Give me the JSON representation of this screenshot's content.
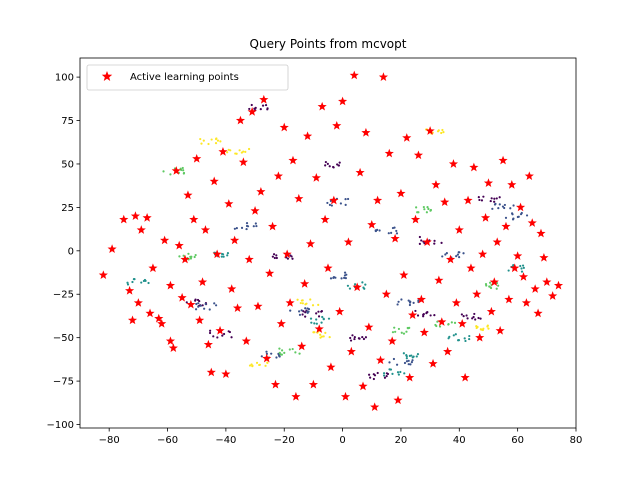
{
  "chart_data": {
    "type": "scatter",
    "title": "Query Points from mcvopt",
    "xlabel": "",
    "ylabel": "",
    "xlim": [
      -90,
      80
    ],
    "ylim": [
      -102,
      111
    ],
    "xticks": [
      -80,
      -60,
      -40,
      -20,
      0,
      20,
      40,
      60,
      80
    ],
    "yticks": [
      -100,
      -75,
      -50,
      -25,
      0,
      25,
      50,
      75,
      100
    ],
    "xtick_labels": [
      "−80",
      "−60",
      "−40",
      "−20",
      "0",
      "20",
      "40",
      "60",
      "80"
    ],
    "ytick_labels": [
      "−100",
      "−75",
      "−50",
      "−25",
      "0",
      "25",
      "50",
      "75",
      "100"
    ],
    "grid": false,
    "legend": {
      "position": "top-left",
      "entries": [
        "Active learning points"
      ]
    },
    "colors": {
      "query": "#ff0000",
      "class_palette": [
        "#440154",
        "#3b528b",
        "#21918c",
        "#5ec962",
        "#fde725"
      ]
    },
    "background_marker": "small dots colored by class (viridis)",
    "series": [
      {
        "name": "Active learning points",
        "marker": "star",
        "color": "#ff0000",
        "points": [
          [
            -82,
            -14
          ],
          [
            -79,
            1
          ],
          [
            -75,
            18
          ],
          [
            -73,
            -23
          ],
          [
            -72,
            -40
          ],
          [
            -71,
            20
          ],
          [
            -70,
            -30
          ],
          [
            -69,
            12
          ],
          [
            -67,
            19
          ],
          [
            -66,
            -36
          ],
          [
            -65,
            -10
          ],
          [
            -63,
            -39
          ],
          [
            -62,
            -42
          ],
          [
            -61,
            6
          ],
          [
            -59,
            -52
          ],
          [
            -59,
            -20
          ],
          [
            -58,
            -56
          ],
          [
            -57,
            46
          ],
          [
            -56,
            3
          ],
          [
            -55,
            -27
          ],
          [
            -54,
            -5
          ],
          [
            -53,
            32
          ],
          [
            -52,
            -31
          ],
          [
            -51,
            18
          ],
          [
            -50,
            53
          ],
          [
            -49,
            -40
          ],
          [
            -48,
            -18
          ],
          [
            -47,
            12
          ],
          [
            -46,
            -54
          ],
          [
            -45,
            -70
          ],
          [
            -44,
            40
          ],
          [
            -43,
            -2
          ],
          [
            -42,
            -46
          ],
          [
            -41,
            57
          ],
          [
            -40,
            -71
          ],
          [
            -39,
            27
          ],
          [
            -38,
            -22
          ],
          [
            -37,
            6
          ],
          [
            -36,
            -33
          ],
          [
            -35,
            75
          ],
          [
            -34,
            51
          ],
          [
            -33,
            -52
          ],
          [
            -32,
            -5
          ],
          [
            -31,
            80
          ],
          [
            -30,
            23
          ],
          [
            -29,
            -32
          ],
          [
            -28,
            34
          ],
          [
            -27,
            87
          ],
          [
            -26,
            -62
          ],
          [
            -25,
            -13
          ],
          [
            -24,
            14
          ],
          [
            -23,
            -77
          ],
          [
            -22,
            43
          ],
          [
            -21,
            -42
          ],
          [
            -20,
            71
          ],
          [
            -19,
            -2
          ],
          [
            -18,
            -30
          ],
          [
            -17,
            52
          ],
          [
            -16,
            -84
          ],
          [
            -15,
            30
          ],
          [
            -14,
            -55
          ],
          [
            -13,
            -19
          ],
          [
            -12,
            66
          ],
          [
            -11,
            4
          ],
          [
            -10,
            -77
          ],
          [
            -9,
            42
          ],
          [
            -8,
            -45
          ],
          [
            -7,
            83
          ],
          [
            -6,
            18
          ],
          [
            -5,
            -10
          ],
          [
            -4,
            -67
          ],
          [
            -3,
            29
          ],
          [
            -2,
            72
          ],
          [
            -1,
            -35
          ],
          [
            0,
            86
          ],
          [
            1,
            -84
          ],
          [
            2,
            5
          ],
          [
            3,
            -58
          ],
          [
            4,
            101
          ],
          [
            5,
            -21
          ],
          [
            6,
            45
          ],
          [
            7,
            -78
          ],
          [
            8,
            68
          ],
          [
            9,
            -44
          ],
          [
            10,
            15
          ],
          [
            11,
            -90
          ],
          [
            12,
            29
          ],
          [
            13,
            -63
          ],
          [
            14,
            100
          ],
          [
            15,
            -25
          ],
          [
            16,
            56
          ],
          [
            17,
            -52
          ],
          [
            18,
            7
          ],
          [
            19,
            -86
          ],
          [
            20,
            33
          ],
          [
            21,
            -14
          ],
          [
            22,
            65
          ],
          [
            23,
            -73
          ],
          [
            24,
            -37
          ],
          [
            25,
            18
          ],
          [
            26,
            55
          ],
          [
            27,
            -28
          ],
          [
            28,
            -47
          ],
          [
            29,
            5
          ],
          [
            30,
            69
          ],
          [
            31,
            -65
          ],
          [
            32,
            38
          ],
          [
            33,
            -17
          ],
          [
            34,
            -41
          ],
          [
            35,
            28
          ],
          [
            36,
            -58
          ],
          [
            37,
            -5
          ],
          [
            38,
            50
          ],
          [
            39,
            -30
          ],
          [
            40,
            12
          ],
          [
            41,
            -42
          ],
          [
            42,
            -73
          ],
          [
            43,
            29
          ],
          [
            44,
            -10
          ],
          [
            45,
            48
          ],
          [
            46,
            -25
          ],
          [
            47,
            -50
          ],
          [
            48,
            -2
          ],
          [
            49,
            19
          ],
          [
            50,
            39
          ],
          [
            51,
            -35
          ],
          [
            52,
            -18
          ],
          [
            53,
            5
          ],
          [
            54,
            -46
          ],
          [
            55,
            52
          ],
          [
            56,
            14
          ],
          [
            57,
            -28
          ],
          [
            58,
            38
          ],
          [
            59,
            -10
          ],
          [
            60,
            -3
          ],
          [
            61,
            25
          ],
          [
            62,
            -15
          ],
          [
            63,
            -30
          ],
          [
            64,
            43
          ],
          [
            65,
            16
          ],
          [
            66,
            -22
          ],
          [
            67,
            -36
          ],
          [
            68,
            10
          ],
          [
            69,
            -4
          ],
          [
            70,
            -18
          ],
          [
            72,
            -26
          ],
          [
            74,
            -20
          ]
        ]
      }
    ],
    "background_clusters": [
      {
        "class": 0,
        "points": [
          [
            -42,
            -48
          ],
          [
            -10,
            -36
          ],
          [
            5,
            -50
          ],
          [
            28,
            -36
          ],
          [
            -4,
            50
          ],
          [
            -28,
            82
          ],
          [
            12,
            -72
          ],
          [
            44,
            -38
          ],
          [
            -50,
            -30
          ],
          [
            -20,
            -3
          ],
          [
            30,
            6
          ],
          [
            50,
            30
          ]
        ]
      },
      {
        "class": 1,
        "points": [
          [
            -15,
            -35
          ],
          [
            15,
            12
          ],
          [
            -33,
            14
          ],
          [
            38,
            -2
          ],
          [
            -2,
            28
          ],
          [
            22,
            -30
          ],
          [
            55,
            26
          ],
          [
            -47,
            -32
          ],
          [
            0,
            -14
          ],
          [
            20,
            -64
          ],
          [
            -25,
            -60
          ],
          [
            60,
            20
          ]
        ]
      },
      {
        "class": 2,
        "points": [
          [
            -8,
            -40
          ],
          [
            18,
            -70
          ],
          [
            40,
            -50
          ],
          [
            -40,
            -2
          ],
          [
            60,
            -10
          ],
          [
            -70,
            -18
          ],
          [
            25,
            -60
          ],
          [
            5,
            -20
          ]
        ]
      },
      {
        "class": 3,
        "points": [
          [
            28,
            24
          ],
          [
            -52,
            -3
          ],
          [
            50,
            -20
          ],
          [
            -58,
            46
          ],
          [
            35,
            -42
          ],
          [
            -18,
            -58
          ],
          [
            20,
            -46
          ]
        ]
      },
      {
        "class": 4,
        "points": [
          [
            -45,
            63
          ],
          [
            -6,
            -48
          ],
          [
            32,
            68
          ],
          [
            -36,
            57
          ],
          [
            48,
            -45
          ],
          [
            -12,
            -30
          ],
          [
            -28,
            -66
          ]
        ]
      }
    ]
  }
}
